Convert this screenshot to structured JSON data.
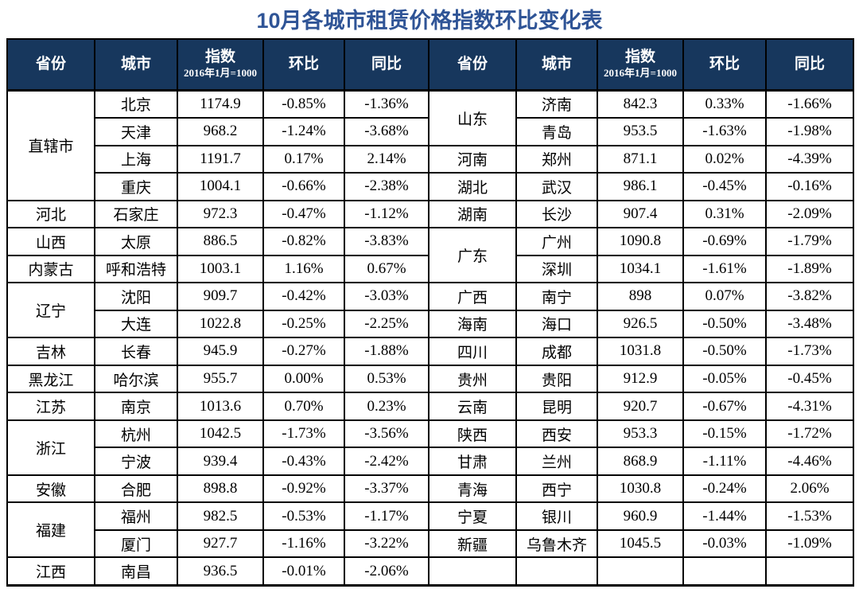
{
  "title": "10月各城市租赁价格指数环比变化表",
  "colors": {
    "title_text": "#2F5496",
    "header_bg": "#17375D",
    "header_text": "#FFFFFF",
    "border": "#000000",
    "body_text": "#000000",
    "background": "#FFFFFF"
  },
  "header": {
    "province": "省份",
    "city": "城市",
    "index": "指数",
    "index_note": "2016年1月=1000",
    "mom": "环比",
    "yoy": "同比"
  },
  "rows": [
    {
      "left": {
        "province": "直辖市",
        "province_rowspan": 4,
        "group_start": true,
        "city": "北京",
        "index": "1174.9",
        "mom": "-0.85%",
        "yoy": "-1.36%"
      },
      "right": {
        "province": "山东",
        "province_rowspan": 2,
        "group_start": true,
        "city": "济南",
        "index": "842.3",
        "mom": "0.33%",
        "yoy": "-1.66%"
      }
    },
    {
      "left": {
        "group_start": false,
        "city": "天津",
        "index": "968.2",
        "mom": "-1.24%",
        "yoy": "-3.68%"
      },
      "right": {
        "group_start": false,
        "city": "青岛",
        "index": "953.5",
        "mom": "-1.63%",
        "yoy": "-1.98%"
      }
    },
    {
      "left": {
        "group_start": false,
        "city": "上海",
        "index": "1191.7",
        "mom": "0.17%",
        "yoy": "2.14%"
      },
      "right": {
        "province": "河南",
        "province_rowspan": 1,
        "group_start": true,
        "city": "郑州",
        "index": "871.1",
        "mom": "0.02%",
        "yoy": "-4.39%"
      }
    },
    {
      "left": {
        "group_start": false,
        "city": "重庆",
        "index": "1004.1",
        "mom": "-0.66%",
        "yoy": "-2.38%"
      },
      "right": {
        "province": "湖北",
        "province_rowspan": 1,
        "group_start": true,
        "city": "武汉",
        "index": "986.1",
        "mom": "-0.45%",
        "yoy": "-0.16%"
      }
    },
    {
      "left": {
        "province": "河北",
        "province_rowspan": 1,
        "group_start": true,
        "city": "石家庄",
        "index": "972.3",
        "mom": "-0.47%",
        "yoy": "-1.12%"
      },
      "right": {
        "province": "湖南",
        "province_rowspan": 1,
        "group_start": true,
        "city": "长沙",
        "index": "907.4",
        "mom": "0.31%",
        "yoy": "-2.09%"
      }
    },
    {
      "left": {
        "province": "山西",
        "province_rowspan": 1,
        "group_start": true,
        "city": "太原",
        "index": "886.5",
        "mom": "-0.82%",
        "yoy": "-3.83%"
      },
      "right": {
        "province": "广东",
        "province_rowspan": 2,
        "group_start": true,
        "city": "广州",
        "index": "1090.8",
        "mom": "-0.69%",
        "yoy": "-1.79%"
      }
    },
    {
      "left": {
        "province": "内蒙古",
        "province_rowspan": 1,
        "group_start": true,
        "city": "呼和浩特",
        "index": "1003.1",
        "mom": "1.16%",
        "yoy": "0.67%"
      },
      "right": {
        "group_start": false,
        "city": "深圳",
        "index": "1034.1",
        "mom": "-1.61%",
        "yoy": "-1.89%"
      }
    },
    {
      "left": {
        "province": "辽宁",
        "province_rowspan": 2,
        "group_start": true,
        "city": "沈阳",
        "index": "909.7",
        "mom": "-0.42%",
        "yoy": "-3.03%"
      },
      "right": {
        "province": "广西",
        "province_rowspan": 1,
        "group_start": true,
        "city": "南宁",
        "index": "898",
        "mom": "0.07%",
        "yoy": "-3.82%"
      }
    },
    {
      "left": {
        "group_start": false,
        "city": "大连",
        "index": "1022.8",
        "mom": "-0.25%",
        "yoy": "-2.25%"
      },
      "right": {
        "province": "海南",
        "province_rowspan": 1,
        "group_start": true,
        "city": "海口",
        "index": "926.5",
        "mom": "-0.50%",
        "yoy": "-3.48%"
      }
    },
    {
      "left": {
        "province": "吉林",
        "province_rowspan": 1,
        "group_start": true,
        "city": "长春",
        "index": "945.9",
        "mom": "-0.27%",
        "yoy": "-1.88%"
      },
      "right": {
        "province": "四川",
        "province_rowspan": 1,
        "group_start": true,
        "city": "成都",
        "index": "1031.8",
        "mom": "-0.50%",
        "yoy": "-1.73%"
      }
    },
    {
      "left": {
        "province": "黑龙江",
        "province_rowspan": 1,
        "group_start": true,
        "city": "哈尔滨",
        "index": "955.7",
        "mom": "0.00%",
        "yoy": "0.53%"
      },
      "right": {
        "province": "贵州",
        "province_rowspan": 1,
        "group_start": true,
        "city": "贵阳",
        "index": "912.9",
        "mom": "-0.05%",
        "yoy": "-0.45%"
      }
    },
    {
      "left": {
        "province": "江苏",
        "province_rowspan": 1,
        "group_start": true,
        "city": "南京",
        "index": "1013.6",
        "mom": "0.70%",
        "yoy": "0.23%"
      },
      "right": {
        "province": "云南",
        "province_rowspan": 1,
        "group_start": true,
        "city": "昆明",
        "index": "920.7",
        "mom": "-0.67%",
        "yoy": "-4.31%"
      }
    },
    {
      "left": {
        "province": "浙江",
        "province_rowspan": 2,
        "group_start": true,
        "city": "杭州",
        "index": "1042.5",
        "mom": "-1.73%",
        "yoy": "-3.56%"
      },
      "right": {
        "province": "陕西",
        "province_rowspan": 1,
        "group_start": true,
        "city": "西安",
        "index": "953.3",
        "mom": "-0.15%",
        "yoy": "-1.72%"
      }
    },
    {
      "left": {
        "group_start": false,
        "city": "宁波",
        "index": "939.4",
        "mom": "-0.43%",
        "yoy": "-2.42%"
      },
      "right": {
        "province": "甘肃",
        "province_rowspan": 1,
        "group_start": true,
        "city": "兰州",
        "index": "868.9",
        "mom": "-1.11%",
        "yoy": "-4.46%"
      }
    },
    {
      "left": {
        "province": "安徽",
        "province_rowspan": 1,
        "group_start": true,
        "city": "合肥",
        "index": "898.8",
        "mom": "-0.92%",
        "yoy": "-3.37%"
      },
      "right": {
        "province": "青海",
        "province_rowspan": 1,
        "group_start": true,
        "city": "西宁",
        "index": "1030.8",
        "mom": "-0.24%",
        "yoy": "2.06%"
      }
    },
    {
      "left": {
        "province": "福建",
        "province_rowspan": 2,
        "group_start": true,
        "city": "福州",
        "index": "982.5",
        "mom": "-0.53%",
        "yoy": "-1.17%"
      },
      "right": {
        "province": "宁夏",
        "province_rowspan": 1,
        "group_start": true,
        "city": "银川",
        "index": "960.9",
        "mom": "-1.44%",
        "yoy": "-1.53%"
      }
    },
    {
      "left": {
        "group_start": false,
        "city": "厦门",
        "index": "927.7",
        "mom": "-1.16%",
        "yoy": "-3.22%"
      },
      "right": {
        "province": "新疆",
        "province_rowspan": 1,
        "group_start": true,
        "city": "乌鲁木齐",
        "index": "1045.5",
        "mom": "-0.03%",
        "yoy": "-1.09%"
      }
    },
    {
      "left": {
        "province": "江西",
        "province_rowspan": 1,
        "group_start": true,
        "city": "南昌",
        "index": "936.5",
        "mom": "-0.01%",
        "yoy": "-2.06%"
      },
      "right": {
        "province": "",
        "province_rowspan": 1,
        "group_start": true,
        "city": "",
        "index": "",
        "mom": "",
        "yoy": ""
      }
    }
  ]
}
